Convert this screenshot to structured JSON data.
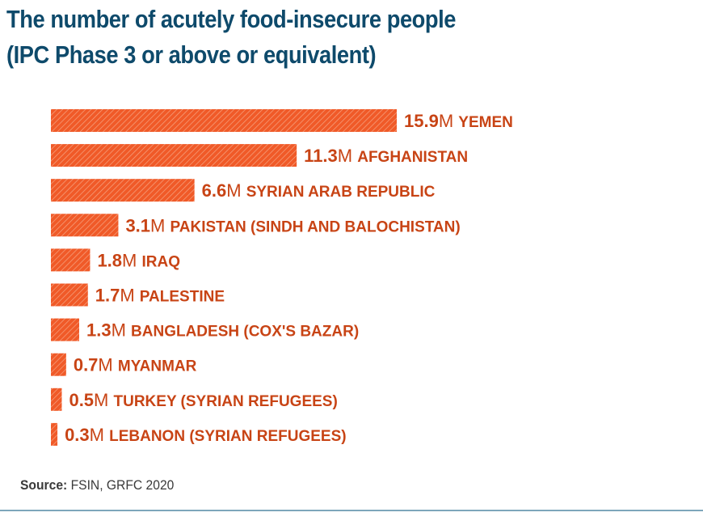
{
  "title_line1": "The number of acutely food-insecure people",
  "title_line2": "(IPC Phase 3 or above or equivalent)",
  "chart_data": {
    "type": "bar",
    "orientation": "horizontal",
    "title": "The number of acutely food-insecure people (IPC Phase 3 or above or equivalent)",
    "unit_suffix": "M",
    "categories": [
      "YEMEN",
      "AFGHANISTAN",
      "SYRIAN ARAB REPUBLIC",
      "PAKISTAN (SINDH AND BALOCHISTAN)",
      "IRAQ",
      "PALESTINE",
      "BANGLADESH (COX'S BAZAR)",
      "MYANMAR",
      "TURKEY (SYRIAN REFUGEES)",
      "LEBANON (SYRIAN REFUGEES)"
    ],
    "values": [
      15.9,
      11.3,
      6.6,
      3.1,
      1.8,
      1.7,
      1.3,
      0.7,
      0.5,
      0.3
    ],
    "value_labels": [
      "15.9",
      "11.3",
      "6.6",
      "3.1",
      "1.8",
      "1.7",
      "1.3",
      "0.7",
      "0.5",
      "0.3"
    ],
    "xlabel": "",
    "ylabel": "",
    "xlim": [
      0,
      15.9
    ],
    "grid": false,
    "legend": "none",
    "bar_color": "#f05a28",
    "label_color": "#c84415"
  },
  "source": {
    "label": "Source:",
    "text": " FSIN, GRFC 2020"
  },
  "colors": {
    "title": "#0e4a6b",
    "rule": "#7ea6bb"
  }
}
